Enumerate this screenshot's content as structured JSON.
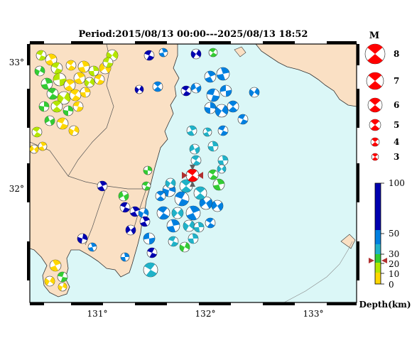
{
  "title": "Period:2015/08/13 00:00---2025/08/13 18:52",
  "axes": {
    "lat_labels": [
      "33°",
      "32°"
    ],
    "lon_labels": [
      "131°",
      "132°",
      "133°"
    ]
  },
  "magnitude_legend": {
    "heading": "M",
    "values": [
      "8",
      "7",
      "6",
      "5",
      "4",
      "3"
    ]
  },
  "depth_legend": {
    "label": "Depth(km)",
    "ticks": [
      "100",
      "50",
      "30",
      "20",
      "10",
      "0"
    ]
  },
  "colors": {
    "sea": "#dbf7f7",
    "land": "#fae0c4",
    "mag_red": "#ff0000",
    "depth_0_10": "#ffd700",
    "depth_10_20": "#b4e600",
    "depth_20_30": "#33cc33",
    "depth_30_50": "#20b2c8",
    "depth_50_100": "#0080e0",
    "depth_100plus": "#0000b0"
  },
  "markers": {
    "main_event": "red-mechanism-with-triangles"
  }
}
